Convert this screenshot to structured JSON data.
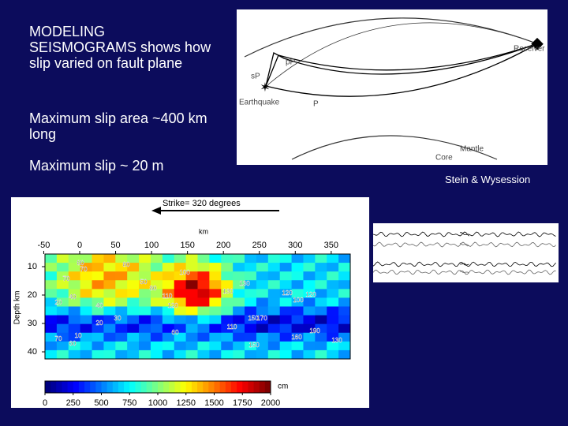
{
  "bullets": [
    "MODELING SEISMOGRAMS shows how slip varied on fault plane",
    "Maximum slip area ~400 km long",
    "Maximum slip ~ 20 m"
  ],
  "diagram": {
    "receiver": "Receiver",
    "pp": "pP",
    "sp": "sP",
    "earthquake": "Earthquake",
    "p": "P",
    "mantle": "Mantle",
    "core": "Core"
  },
  "credit": "Stein & Wysession",
  "slip_map": {
    "strike": "Strike= 320 degrees",
    "x_unit": "km",
    "y_label": "Depth km",
    "xticks": [
      -50,
      0,
      50,
      100,
      150,
      200,
      250,
      300,
      350
    ],
    "yticks": [
      10,
      20,
      30,
      40
    ],
    "colorbar_unit": "cm",
    "colorbar_ticks": [
      0,
      250,
      500,
      750,
      1000,
      1250,
      1500,
      1750,
      2000
    ],
    "contour_labels": [
      80,
      70,
      80,
      100,
      70,
      50,
      40,
      20,
      40,
      30,
      20,
      10,
      70,
      60,
      80,
      110,
      120,
      130,
      150,
      170,
      120,
      100,
      120,
      130,
      60,
      110,
      150,
      160,
      190,
      130
    ]
  }
}
